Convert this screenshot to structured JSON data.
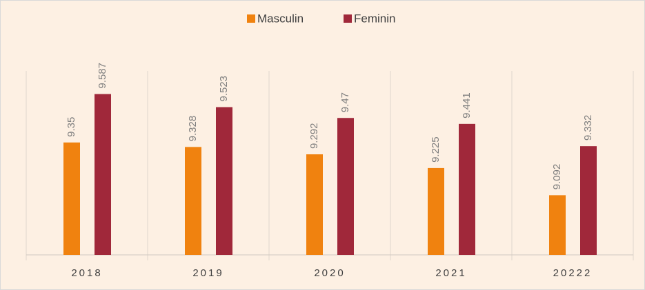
{
  "chart_data": {
    "type": "bar",
    "categories": [
      "2018",
      "2019",
      "2020",
      "2021",
      "20222"
    ],
    "series": [
      {
        "name": "Masculin",
        "color": "#f0820f",
        "values": [
          9.35,
          9.328,
          9.292,
          9.225,
          9.092
        ]
      },
      {
        "name": "Feminin",
        "color": "#a0283a",
        "values": [
          9.587,
          9.523,
          9.47,
          9.441,
          9.332
        ]
      }
    ],
    "ylim": [
      8.8,
      9.7
    ],
    "legend": "top"
  }
}
